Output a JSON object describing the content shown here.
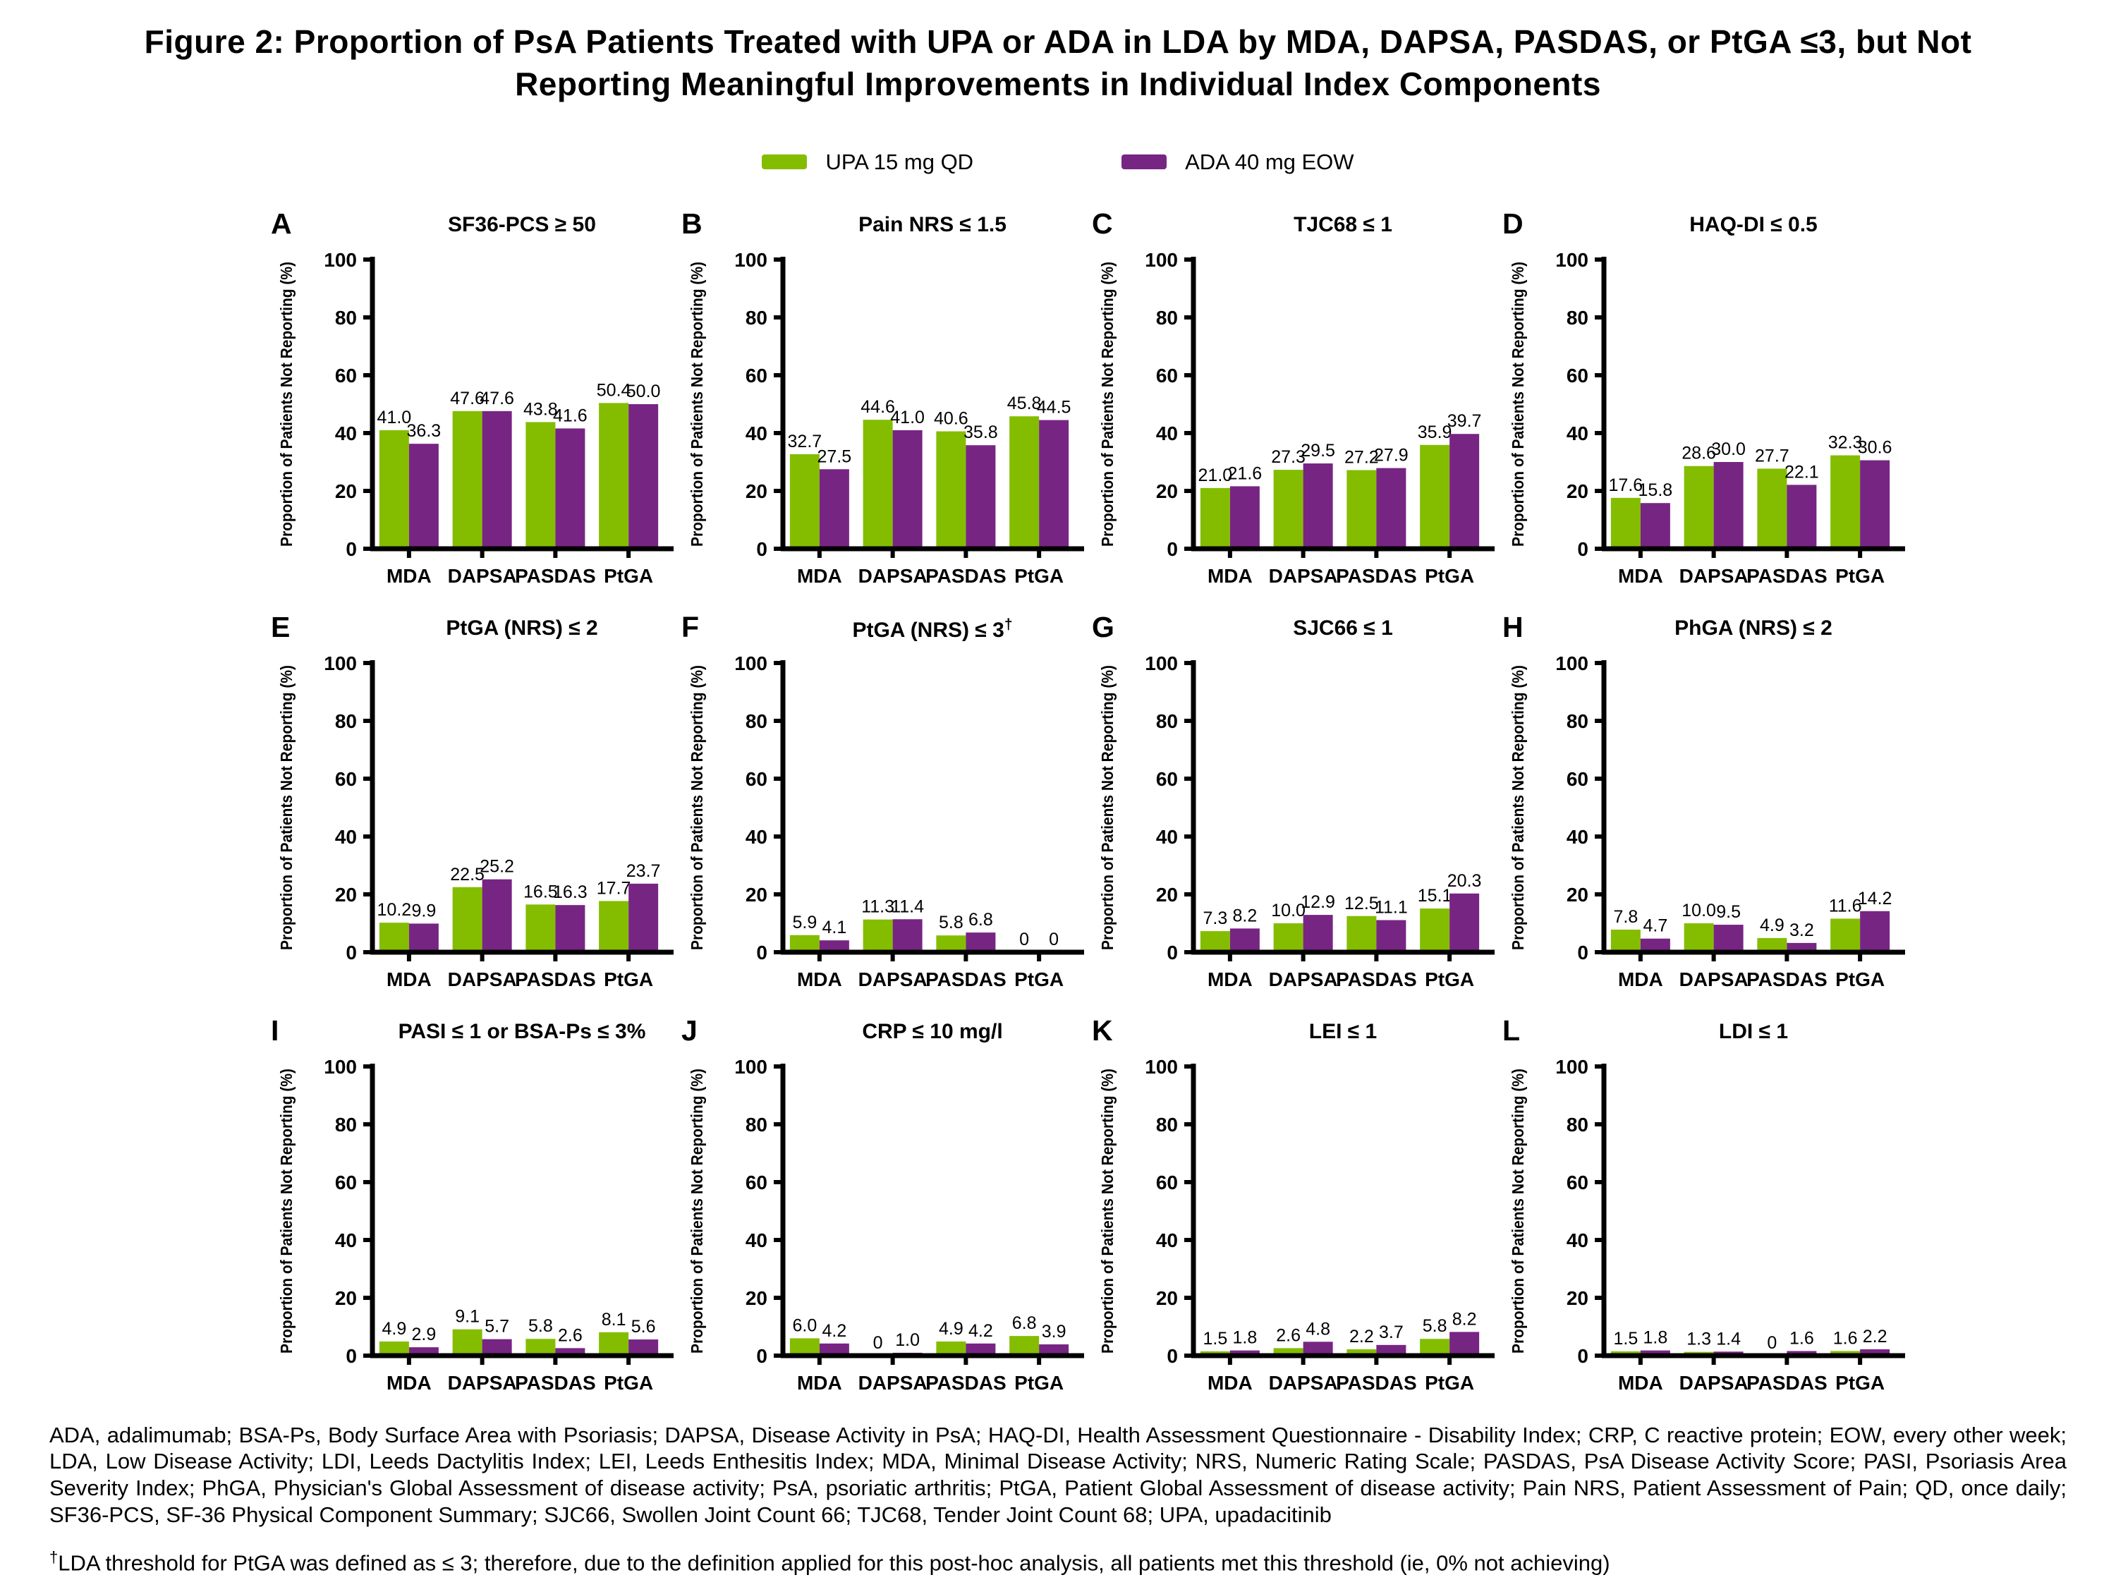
{
  "figure_title": {
    "line1": "Figure 2: Proportion of PsA Patients Treated with UPA or ADA in LDA by MDA, DAPSA, PASDAS, or PtGA ≤3, but Not",
    "line2": "Reporting Meaningful Improvements in Individual Index Components"
  },
  "legend": {
    "items": [
      {
        "label": "UPA 15 mg QD",
        "color": "#84bd00"
      },
      {
        "label": "ADA 40 mg EOW",
        "color": "#772583"
      }
    ]
  },
  "chart_data": {
    "type": "bar",
    "ylabel": "Proportion of Patients Not Reporting (%)",
    "ylim": [
      0,
      100
    ],
    "yticks": [
      0,
      20,
      40,
      60,
      80,
      100
    ],
    "categories": [
      "MDA",
      "DAPSA",
      "PASDAS",
      "PtGA"
    ],
    "series_names": [
      "UPA 15 mg QD",
      "ADA 40 mg EOW"
    ],
    "series_colors": [
      "#84bd00",
      "#772583"
    ],
    "legend_position": "top",
    "grid": false,
    "panels": [
      {
        "letter": "A",
        "title": "SF36-PCS ≥ 50",
        "title_sup": "",
        "series": [
          {
            "name": "UPA 15 mg QD",
            "values": [
              41.0,
              47.6,
              43.8,
              50.4
            ]
          },
          {
            "name": "ADA 40 mg EOW",
            "values": [
              36.3,
              47.6,
              41.6,
              50.0
            ]
          }
        ]
      },
      {
        "letter": "B",
        "title": "Pain NRS ≤ 1.5",
        "title_sup": "",
        "series": [
          {
            "name": "UPA 15 mg QD",
            "values": [
              32.7,
              44.6,
              40.6,
              45.8
            ]
          },
          {
            "name": "ADA 40 mg EOW",
            "values": [
              27.5,
              41.0,
              35.8,
              44.5
            ]
          }
        ]
      },
      {
        "letter": "C",
        "title": "TJC68 ≤ 1",
        "title_sup": "",
        "series": [
          {
            "name": "UPA 15 mg QD",
            "values": [
              21.0,
              27.3,
              27.2,
              35.9
            ]
          },
          {
            "name": "ADA 40 mg EOW",
            "values": [
              21.6,
              29.5,
              27.9,
              39.7
            ]
          }
        ]
      },
      {
        "letter": "D",
        "title": "HAQ-DI ≤ 0.5",
        "title_sup": "",
        "series": [
          {
            "name": "UPA 15 mg QD",
            "values": [
              17.6,
              28.6,
              27.7,
              32.3
            ]
          },
          {
            "name": "ADA 40 mg EOW",
            "values": [
              15.8,
              30.0,
              22.1,
              30.6
            ]
          }
        ]
      },
      {
        "letter": "E",
        "title": "PtGA (NRS) ≤ 2",
        "title_sup": "",
        "series": [
          {
            "name": "UPA 15 mg QD",
            "values": [
              10.2,
              22.5,
              16.5,
              17.7
            ]
          },
          {
            "name": "ADA 40 mg EOW",
            "values": [
              9.9,
              25.2,
              16.3,
              23.7
            ]
          }
        ]
      },
      {
        "letter": "F",
        "title": "PtGA (NRS) ≤ 3",
        "title_sup": "†",
        "series": [
          {
            "name": "UPA 15 mg QD",
            "values": [
              5.9,
              11.3,
              5.8,
              0
            ]
          },
          {
            "name": "ADA 40 mg EOW",
            "values": [
              4.1,
              11.4,
              6.8,
              0
            ]
          }
        ]
      },
      {
        "letter": "G",
        "title": "SJC66 ≤ 1",
        "title_sup": "",
        "series": [
          {
            "name": "UPA 15 mg QD",
            "values": [
              7.3,
              10.0,
              12.5,
              15.1
            ]
          },
          {
            "name": "ADA 40 mg EOW",
            "values": [
              8.2,
              12.9,
              11.1,
              20.3
            ]
          }
        ]
      },
      {
        "letter": "H",
        "title": "PhGA (NRS) ≤ 2",
        "title_sup": "",
        "series": [
          {
            "name": "UPA 15 mg QD",
            "values": [
              7.8,
              10.0,
              4.9,
              11.6
            ]
          },
          {
            "name": "ADA 40 mg EOW",
            "values": [
              4.7,
              9.5,
              3.2,
              14.2
            ]
          }
        ]
      },
      {
        "letter": "I",
        "title": "PASI ≤ 1 or BSA-Ps ≤ 3%",
        "title_sup": "",
        "series": [
          {
            "name": "UPA 15 mg QD",
            "values": [
              4.9,
              9.1,
              5.8,
              8.1
            ]
          },
          {
            "name": "ADA 40 mg EOW",
            "values": [
              2.9,
              5.7,
              2.6,
              5.6
            ]
          }
        ]
      },
      {
        "letter": "J",
        "title": "CRP ≤ 10 mg/l",
        "title_sup": "",
        "series": [
          {
            "name": "UPA 15 mg QD",
            "values": [
              6.0,
              0,
              4.9,
              6.8
            ]
          },
          {
            "name": "ADA 40 mg EOW",
            "values": [
              4.2,
              1.0,
              4.2,
              3.9
            ]
          }
        ]
      },
      {
        "letter": "K",
        "title": "LEI ≤ 1",
        "title_sup": "",
        "series": [
          {
            "name": "UPA 15 mg QD",
            "values": [
              1.5,
              2.6,
              2.2,
              5.8
            ]
          },
          {
            "name": "ADA 40 mg EOW",
            "values": [
              1.8,
              4.8,
              3.7,
              8.2
            ]
          }
        ]
      },
      {
        "letter": "L",
        "title": "LDI ≤ 1",
        "title_sup": "",
        "series": [
          {
            "name": "UPA 15 mg QD",
            "values": [
              1.5,
              1.3,
              0,
              1.6
            ]
          },
          {
            "name": "ADA 40 mg EOW",
            "values": [
              1.8,
              1.4,
              1.6,
              2.2
            ]
          }
        ]
      }
    ]
  },
  "footnotes": {
    "abbreviations": "ADA, adalimumab; BSA-Ps, Body Surface Area with Psoriasis; DAPSA, Disease Activity in PsA; HAQ-DI, Health Assessment Questionnaire - Disability Index; CRP, C reactive protein; EOW, every other week; LDA, Low Disease Activity; LDI, Leeds Dactylitis Index; LEI, Leeds Enthesitis Index; MDA, Minimal Disease Activity; NRS, Numeric Rating Scale; PASDAS, PsA Disease Activity Score; PASI, Psoriasis Area Severity Index; PhGA, Physician's Global Assessment of disease activity; PsA, psoriatic arthritis; PtGA, Patient Global Assessment of disease activity; Pain NRS, Patient Assessment of Pain; QD, once daily; SF36-PCS, SF-36 Physical Component Summary; SJC66, Swollen Joint Count 66; TJC68, Tender Joint Count 68; UPA, upadacitinib",
    "dagger_symbol": "†",
    "dagger_text": "LDA threshold for PtGA was defined as ≤ 3; therefore, due to the definition applied for this post-hoc analysis, all patients met this threshold (ie, 0% not achieving)"
  }
}
